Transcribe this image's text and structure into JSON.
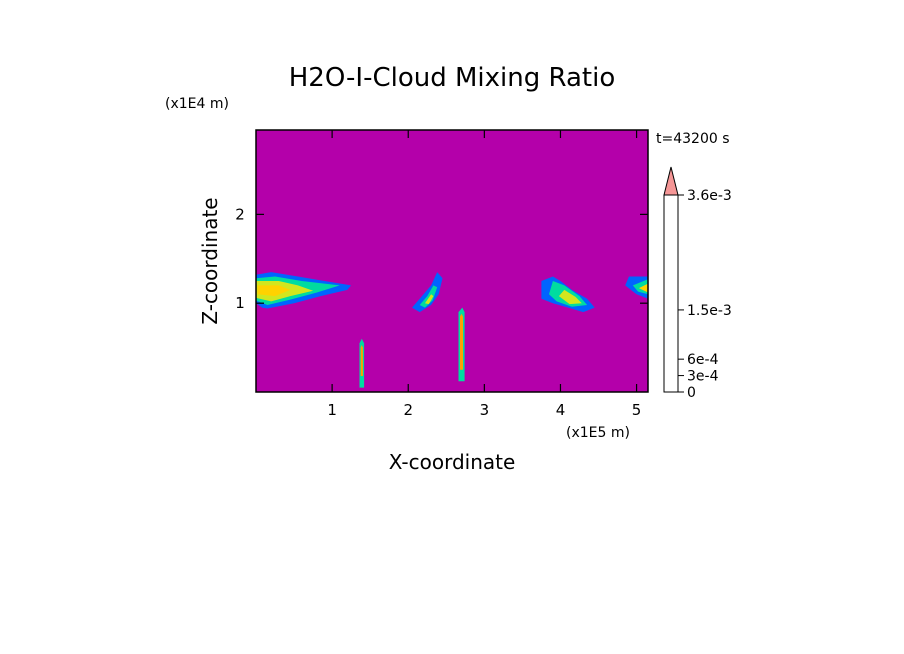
{
  "chart_data": {
    "type": "heatmap",
    "title": "H2O-I-Cloud Mixing Ratio",
    "xlabel": "X-coordinate",
    "ylabel": "Z-coordinate",
    "x_unit": "(x1E5 m)",
    "y_unit": "(x1E4 m)",
    "time_label": "t=43200 s",
    "xlim": [
      0,
      5.15
    ],
    "ylim": [
      0,
      2.95
    ],
    "x_ticks": [
      "1",
      "2",
      "3",
      "4",
      "5"
    ],
    "y_ticks": [
      "1",
      "2"
    ],
    "x_tick_values": [
      1,
      2,
      3,
      4,
      5
    ],
    "y_tick_values": [
      1,
      2
    ],
    "background_color": "#b400aa",
    "colorbar": {
      "levels": [
        "0",
        "3e-4",
        "6e-4",
        "1.5e-3",
        "3.6e-3"
      ],
      "label_values": [
        0,
        0.0003,
        0.0006,
        0.0015,
        0.0036
      ],
      "colors": [
        "#b400aa",
        "#7a1ec8",
        "#3c28d2",
        "#0064ff",
        "#00b4ff",
        "#00dca0",
        "#3cd23c",
        "#d2e61e",
        "#ffd200",
        "#ffa000",
        "#ff7800",
        "#e60000",
        "#f07878",
        "#f59696"
      ],
      "extend": "max"
    },
    "features": [
      {
        "region": "left-edge cloud",
        "x": [
          0.0,
          1.25
        ],
        "z": [
          0.95,
          1.35
        ],
        "max_level": "6e-4"
      },
      {
        "region": "thin column 1",
        "x": [
          1.35,
          1.42
        ],
        "z": [
          0.05,
          0.55
        ],
        "max_level": "1.5e-3"
      },
      {
        "region": "small cloud 2",
        "x": [
          2.05,
          2.45
        ],
        "z": [
          0.9,
          1.35
        ],
        "max_level": "3e-4"
      },
      {
        "region": "thin column 2",
        "x": [
          2.66,
          2.74
        ],
        "z": [
          0.12,
          0.92
        ],
        "max_level": "1.5e-3"
      },
      {
        "region": "cloud 3",
        "x": [
          3.75,
          4.45
        ],
        "z": [
          0.9,
          1.3
        ],
        "max_level": "6e-4"
      },
      {
        "region": "right-edge cloud",
        "x": [
          4.85,
          5.15
        ],
        "z": [
          1.05,
          1.3
        ],
        "max_level": "6e-4"
      }
    ]
  }
}
